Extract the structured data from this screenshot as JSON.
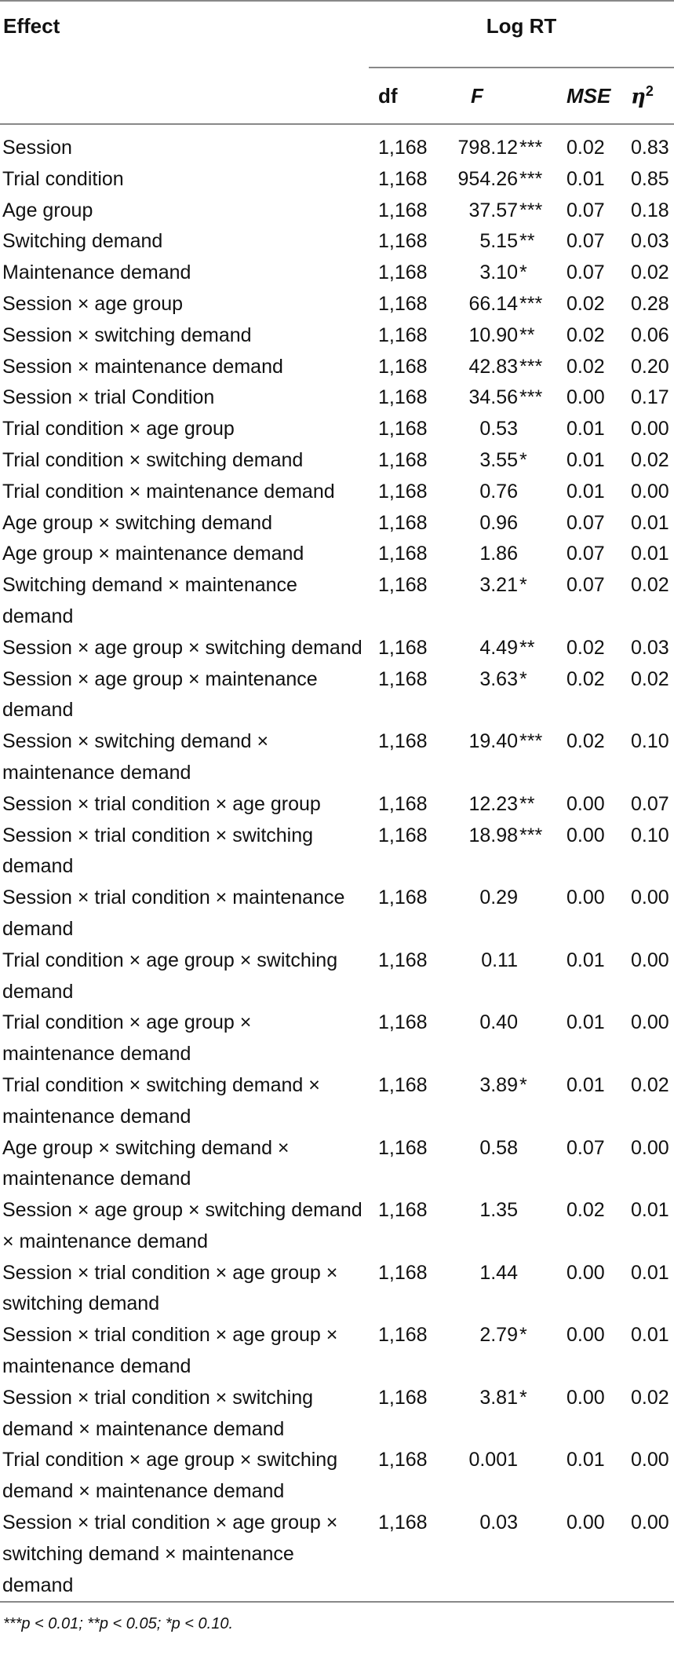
{
  "table": {
    "header": {
      "effect": "Effect",
      "group": "Log RT",
      "df": "df",
      "f": "F",
      "mse": "MSE",
      "eta": "η",
      "eta_sup": "2"
    },
    "rows": [
      {
        "effect": "Session",
        "df": "1,168",
        "f": "798.12",
        "sig": "***",
        "mse": "0.02",
        "eta": "0.83"
      },
      {
        "effect": "Trial condition",
        "df": "1,168",
        "f": "954.26",
        "sig": "***",
        "mse": "0.01",
        "eta": "0.85"
      },
      {
        "effect": "Age group",
        "df": "1,168",
        "f": "37.57",
        "sig": "***",
        "mse": "0.07",
        "eta": "0.18"
      },
      {
        "effect": "Switching demand",
        "df": "1,168",
        "f": "5.15",
        "sig": "**",
        "mse": "0.07",
        "eta": "0.03"
      },
      {
        "effect": "Maintenance demand",
        "df": "1,168",
        "f": "3.10",
        "sig": "*",
        "mse": "0.07",
        "eta": "0.02"
      },
      {
        "effect": "Session × age group",
        "df": "1,168",
        "f": "66.14",
        "sig": "***",
        "mse": "0.02",
        "eta": "0.28"
      },
      {
        "effect": "Session × switching demand",
        "df": "1,168",
        "f": "10.90",
        "sig": "**",
        "mse": "0.02",
        "eta": "0.06"
      },
      {
        "effect": "Session × maintenance demand",
        "df": "1,168",
        "f": "42.83",
        "sig": "***",
        "mse": "0.02",
        "eta": "0.20"
      },
      {
        "effect": "Session × trial Condition",
        "df": "1,168",
        "f": "34.56",
        "sig": "***",
        "mse": "0.00",
        "eta": "0.17"
      },
      {
        "effect": "Trial condition × age group",
        "df": "1,168",
        "f": "0.53",
        "sig": "",
        "mse": "0.01",
        "eta": "0.00"
      },
      {
        "effect": "Trial condition × switching demand",
        "df": "1,168",
        "f": "3.55",
        "sig": "*",
        "mse": "0.01",
        "eta": "0.02"
      },
      {
        "effect": "Trial condition × maintenance demand",
        "df": "1,168",
        "f": "0.76",
        "sig": "",
        "mse": "0.01",
        "eta": "0.00"
      },
      {
        "effect": "Age group × switching demand",
        "df": "1,168",
        "f": "0.96",
        "sig": "",
        "mse": "0.07",
        "eta": "0.01"
      },
      {
        "effect": "Age group × maintenance demand",
        "df": "1,168",
        "f": "1.86",
        "sig": "",
        "mse": "0.07",
        "eta": "0.01"
      },
      {
        "effect": "Switching demand × maintenance demand",
        "df": "1,168",
        "f": "3.21",
        "sig": "*",
        "mse": "0.07",
        "eta": "0.02"
      },
      {
        "effect": "Session × age group × switching demand",
        "df": "1,168",
        "f": "4.49",
        "sig": "**",
        "mse": "0.02",
        "eta": "0.03"
      },
      {
        "effect": "Session × age group × maintenance demand",
        "df": "1,168",
        "f": "3.63",
        "sig": "*",
        "mse": "0.02",
        "eta": "0.02"
      },
      {
        "effect": "Session × switching demand × maintenance demand",
        "df": "1,168",
        "f": "19.40",
        "sig": "***",
        "mse": "0.02",
        "eta": "0.10"
      },
      {
        "effect": "Session × trial condition × age group",
        "df": "1,168",
        "f": "12.23",
        "sig": "**",
        "mse": "0.00",
        "eta": "0.07"
      },
      {
        "effect": "Session × trial condition × switching demand",
        "df": "1,168",
        "f": "18.98",
        "sig": "***",
        "mse": "0.00",
        "eta": "0.10"
      },
      {
        "effect": "Session × trial condition × maintenance demand",
        "df": "1,168",
        "f": "0.29",
        "sig": "",
        "mse": "0.00",
        "eta": "0.00"
      },
      {
        "effect": "Trial condition × age group × switching demand",
        "df": "1,168",
        "f": "0.11",
        "sig": "",
        "mse": "0.01",
        "eta": "0.00"
      },
      {
        "effect": "Trial condition × age group × maintenance demand",
        "df": "1,168",
        "f": "0.40",
        "sig": "",
        "mse": "0.01",
        "eta": "0.00"
      },
      {
        "effect": "Trial condition × switching demand × maintenance demand",
        "df": "1,168",
        "f": "3.89",
        "sig": "*",
        "mse": "0.01",
        "eta": "0.02"
      },
      {
        "effect": "Age group × switching demand × maintenance demand",
        "df": "1,168",
        "f": "0.58",
        "sig": "",
        "mse": "0.07",
        "eta": "0.00"
      },
      {
        "effect": "Session × age group × switching demand × maintenance demand",
        "df": "1,168",
        "f": "1.35",
        "sig": "",
        "mse": "0.02",
        "eta": "0.01"
      },
      {
        "effect": "Session × trial condition × age group × switching demand",
        "df": "1,168",
        "f": "1.44",
        "sig": "",
        "mse": "0.00",
        "eta": "0.01"
      },
      {
        "effect": "Session × trial condition × age group × maintenance demand",
        "df": "1,168",
        "f": "2.79",
        "sig": "*",
        "mse": "0.00",
        "eta": "0.01"
      },
      {
        "effect": "Session × trial condition × switching demand × maintenance demand",
        "df": "1,168",
        "f": "3.81",
        "sig": "*",
        "mse": "0.00",
        "eta": "0.02"
      },
      {
        "effect": "Trial condition × age group × switching demand × maintenance demand",
        "df": "1,168",
        "f": "0.001",
        "sig": "",
        "mse": "0.01",
        "eta": "0.00"
      },
      {
        "effect": "Session × trial condition × age group × switching demand × maintenance demand",
        "df": "1,168",
        "f": "0.03",
        "sig": "",
        "mse": "0.00",
        "eta": "0.00"
      }
    ],
    "footnote": "***p < 0.01; **p < 0.05; *p < 0.10."
  }
}
